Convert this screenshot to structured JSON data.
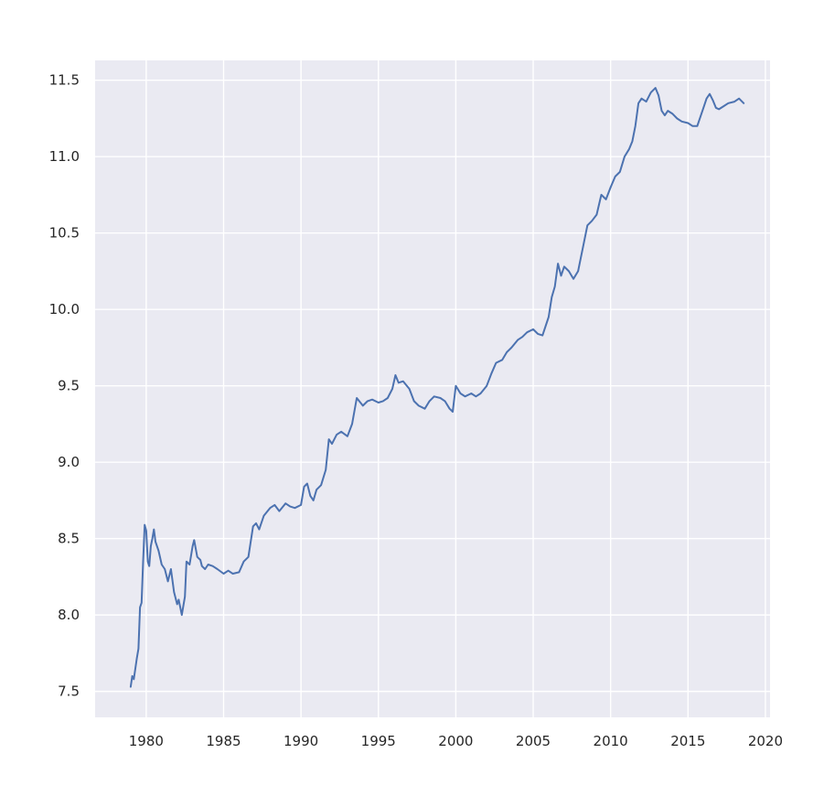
{
  "chart_data": {
    "type": "line",
    "title": "",
    "xlabel": "",
    "ylabel": "",
    "xlim": [
      1976.7,
      2020.3
    ],
    "ylim": [
      7.33,
      11.63
    ],
    "grid": true,
    "legend": "none",
    "background_color": "#eaeaf2",
    "series_color": "#4c72b0",
    "x_ticks": [
      1980,
      1985,
      1990,
      1995,
      2000,
      2005,
      2010,
      2015,
      2020
    ],
    "x_tick_labels": [
      "1980",
      "1985",
      "1990",
      "1995",
      "2000",
      "2005",
      "2010",
      "2015",
      "2020"
    ],
    "y_ticks": [
      7.5,
      8.0,
      8.5,
      9.0,
      9.5,
      10.0,
      10.5,
      11.0,
      11.5
    ],
    "y_tick_labels": [
      "7.5",
      "8.0",
      "8.5",
      "9.0",
      "9.5",
      "10.0",
      "10.5",
      "11.0",
      "11.5"
    ],
    "series": [
      {
        "x": [
          1979.0,
          1979.1,
          1979.2,
          1979.3,
          1979.4,
          1979.5,
          1979.6,
          1979.7,
          1979.8,
          1979.9,
          1980.0,
          1980.1,
          1980.2,
          1980.3,
          1980.4,
          1980.5,
          1980.6,
          1980.8,
          1981.0,
          1981.2,
          1981.4,
          1981.6,
          1981.8,
          1982.0,
          1982.1,
          1982.3,
          1982.5,
          1982.6,
          1982.8,
          1983.0,
          1983.1,
          1983.3,
          1983.5,
          1983.6,
          1983.8,
          1984.0,
          1984.3,
          1984.6,
          1985.0,
          1985.3,
          1985.6,
          1986.0,
          1986.3,
          1986.6,
          1986.9,
          1987.1,
          1987.3,
          1987.6,
          1988.0,
          1988.3,
          1988.6,
          1989.0,
          1989.3,
          1989.6,
          1990.0,
          1990.2,
          1990.4,
          1990.6,
          1990.8,
          1991.0,
          1991.3,
          1991.6,
          1991.8,
          1992.0,
          1992.3,
          1992.6,
          1993.0,
          1993.3,
          1993.6,
          1994.0,
          1994.3,
          1994.6,
          1995.0,
          1995.3,
          1995.6,
          1995.9,
          1996.1,
          1996.3,
          1996.6,
          1997.0,
          1997.3,
          1997.6,
          1998.0,
          1998.3,
          1998.6,
          1999.0,
          1999.3,
          1999.6,
          1999.8,
          2000.0,
          2000.3,
          2000.6,
          2001.0,
          2001.3,
          2001.6,
          2002.0,
          2002.3,
          2002.6,
          2003.0,
          2003.3,
          2003.6,
          2004.0,
          2004.3,
          2004.6,
          2005.0,
          2005.3,
          2005.6,
          2006.0,
          2006.2,
          2006.4,
          2006.6,
          2006.8,
          2007.0,
          2007.3,
          2007.6,
          2007.9,
          2008.2,
          2008.5,
          2008.8,
          2009.1,
          2009.4,
          2009.7,
          2010.0,
          2010.3,
          2010.6,
          2010.9,
          2011.2,
          2011.4,
          2011.6,
          2011.8,
          2012.0,
          2012.3,
          2012.6,
          2012.9,
          2013.1,
          2013.3,
          2013.5,
          2013.7,
          2014.0,
          2014.3,
          2014.6,
          2015.0,
          2015.3,
          2015.6,
          2016.0,
          2016.2,
          2016.4,
          2016.6,
          2016.8,
          2017.0,
          2017.3,
          2017.6,
          2018.0,
          2018.3,
          2018.6
        ],
        "values": [
          7.53,
          7.6,
          7.58,
          7.65,
          7.72,
          7.78,
          8.05,
          8.08,
          8.35,
          8.59,
          8.55,
          8.35,
          8.32,
          8.45,
          8.5,
          8.56,
          8.48,
          8.42,
          8.33,
          8.3,
          8.22,
          8.3,
          8.15,
          8.07,
          8.1,
          8.0,
          8.12,
          8.35,
          8.33,
          8.45,
          8.49,
          8.38,
          8.36,
          8.32,
          8.3,
          8.33,
          8.32,
          8.3,
          8.27,
          8.29,
          8.27,
          8.28,
          8.35,
          8.38,
          8.58,
          8.6,
          8.56,
          8.65,
          8.7,
          8.72,
          8.68,
          8.73,
          8.71,
          8.7,
          8.72,
          8.84,
          8.86,
          8.78,
          8.75,
          8.82,
          8.85,
          8.95,
          9.15,
          9.12,
          9.18,
          9.2,
          9.17,
          9.25,
          9.42,
          9.37,
          9.4,
          9.41,
          9.39,
          9.4,
          9.42,
          9.48,
          9.57,
          9.52,
          9.53,
          9.48,
          9.4,
          9.37,
          9.35,
          9.4,
          9.43,
          9.42,
          9.4,
          9.35,
          9.33,
          9.5,
          9.45,
          9.43,
          9.45,
          9.43,
          9.45,
          9.5,
          9.58,
          9.65,
          9.67,
          9.72,
          9.75,
          9.8,
          9.82,
          9.85,
          9.87,
          9.84,
          9.83,
          9.95,
          10.08,
          10.15,
          10.3,
          10.22,
          10.28,
          10.25,
          10.2,
          10.25,
          10.4,
          10.55,
          10.58,
          10.62,
          10.75,
          10.72,
          10.8,
          10.87,
          10.9,
          11.0,
          11.05,
          11.1,
          11.2,
          11.35,
          11.38,
          11.36,
          11.42,
          11.45,
          11.4,
          11.3,
          11.27,
          11.3,
          11.28,
          11.25,
          11.23,
          11.22,
          11.2,
          11.2,
          11.32,
          11.38,
          11.41,
          11.37,
          11.32,
          11.31,
          11.33,
          11.35,
          11.36,
          11.38,
          11.35
        ]
      }
    ]
  }
}
